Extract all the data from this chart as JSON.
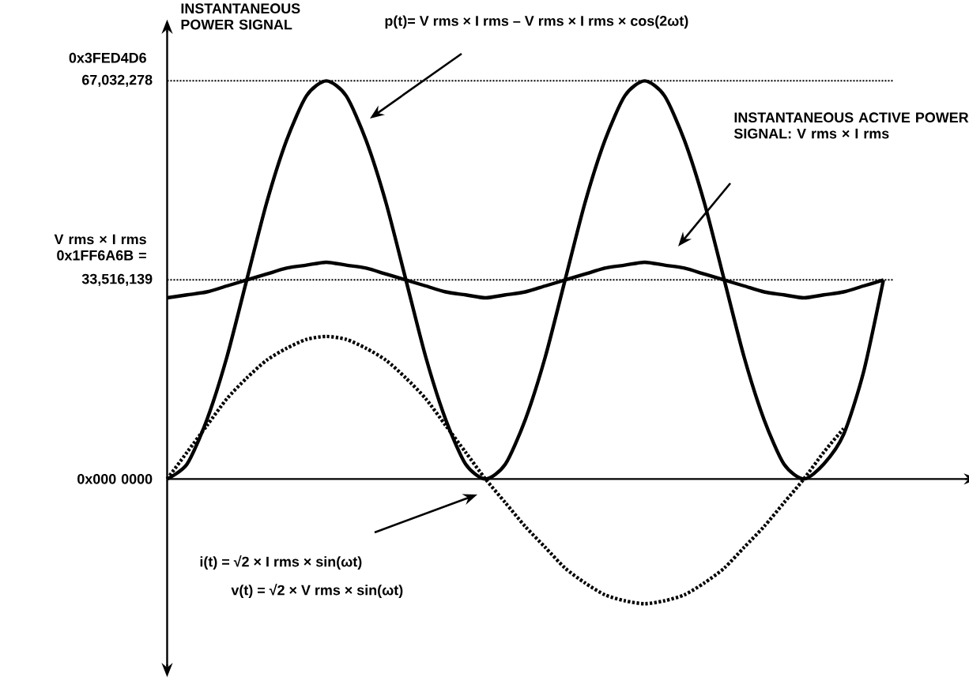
{
  "chart_data": {
    "type": "line",
    "categories": [
      null,
      null,
      null,
      null,
      null,
      null,
      null,
      null,
      null,
      null,
      null,
      null,
      null,
      null,
      null,
      null,
      null,
      null,
      null,
      null,
      null,
      null,
      null,
      null,
      null,
      null,
      null,
      null,
      null,
      null,
      null,
      null,
      null,
      null,
      null,
      null,
      null
    ],
    "series": [
      {
        "color": "#000000",
        "line_style": "solid",
        "values": [
          0,
          2500000,
          10000000,
          20500000,
          33516139,
          46500000,
          57000000,
          64500000,
          67032278,
          64500000,
          57000000,
          46500000,
          33516139,
          20500000,
          10000000,
          2500000,
          0,
          2500000,
          10000000,
          20500000,
          33516139,
          46500000,
          57000000,
          64500000,
          67032278,
          64500000,
          57000000,
          46500000,
          33516139,
          20500000,
          10000000,
          2500000,
          0,
          2500000,
          7500000,
          18000000,
          33516139
        ]
      },
      {
        "color": "#000000",
        "line_style": "solid",
        "values": [
          30500000,
          31000000,
          31500000,
          32500000,
          33500000,
          34500000,
          35500000,
          36000000,
          36500000,
          36000000,
          35500000,
          34500000,
          33500000,
          32500000,
          31500000,
          31000000,
          30500000,
          31000000,
          31500000,
          32500000,
          33500000,
          34500000,
          35500000,
          36000000,
          36500000,
          36000000,
          35500000,
          34500000,
          33500000,
          32500000,
          31500000,
          31000000,
          30500000,
          31000000,
          31500000,
          32500000,
          33500000
        ]
      },
      {
        "color": "#000000",
        "line_style": "dotted",
        "values": [
          0,
          4500000,
          9000000,
          13500000,
          17000000,
          20000000,
          22000000,
          23500000,
          24000000,
          23500000,
          22000000,
          20000000,
          17000000,
          13500000,
          9000000,
          4500000,
          0,
          -4000000,
          -8000000,
          -11500000,
          -15000000,
          -17500000,
          -19500000,
          -20500000,
          -21000000,
          -20500000,
          -19500000,
          -17500000,
          -15000000,
          -11500000,
          -8000000,
          -4000000,
          0,
          4500000,
          8500000,
          null,
          null
        ]
      }
    ],
    "ylim": [
      -31500000,
      75500000
    ],
    "yticks": [
      {
        "value": 0,
        "label": "0x000 0000"
      },
      {
        "value": 33516139,
        "label": "33,516,139"
      },
      {
        "value": 67032278,
        "label": "67,032,278"
      }
    ],
    "ref_lines": [
      {
        "axis": "y",
        "value": 67032278,
        "line_style": "dotted"
      },
      {
        "axis": "y",
        "value": 33516139,
        "line_style": "dotted"
      }
    ],
    "annotations": [
      "INSTANTANEOUS POWER SIGNAL",
      "p(t)= V rms × I rms – V rms × I rms × cos(2ωt)",
      "INSTANTANEOUS ACTIVE POWER SIGNAL: V rms × I rms",
      "i(t) = √2 × I rms × sin(ωt)",
      "v(t) = √2 × V rms × sin(ωt)",
      "V rms × I rms 0x1FF6A6B =",
      "0x3FED4D6"
    ]
  }
}
